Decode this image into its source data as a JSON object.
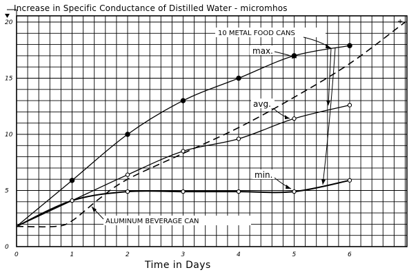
{
  "chart_data": {
    "type": "line",
    "title": "Increase in Specific Conductance of Distilled Water - micromhos",
    "xlabel": "Time in Days",
    "ylabel": "",
    "xlim": [
      0,
      7
    ],
    "ylim": [
      0,
      20.5
    ],
    "x_ticks": [
      "0",
      "1",
      "2",
      "3",
      "4",
      "5",
      "6"
    ],
    "y_ticks": [
      "0",
      "5",
      "10",
      "15",
      "20"
    ],
    "grid": true,
    "series": [
      {
        "name": "max.",
        "marker": "filled-circle",
        "style": "solid",
        "points": [
          [
            0,
            1.8
          ],
          [
            1,
            5.9
          ],
          [
            2,
            10.0
          ],
          [
            3,
            13.0
          ],
          [
            4,
            15.0
          ],
          [
            5,
            17.0
          ],
          [
            6,
            17.9
          ]
        ]
      },
      {
        "name": "avg.",
        "marker": "open-circle",
        "style": "solid",
        "points": [
          [
            0,
            1.8
          ],
          [
            1,
            4.1
          ],
          [
            2,
            6.4
          ],
          [
            3,
            8.5
          ],
          [
            4,
            9.6
          ],
          [
            5,
            11.4
          ],
          [
            6,
            12.6
          ]
        ]
      },
      {
        "name": "min.",
        "marker": "open-circle",
        "style": "solid",
        "points": [
          [
            0,
            1.8
          ],
          [
            1,
            4.1
          ],
          [
            2,
            4.9
          ],
          [
            3,
            4.9
          ],
          [
            4,
            4.9
          ],
          [
            5,
            4.9
          ],
          [
            6,
            5.9
          ]
        ]
      },
      {
        "name": "ALUMINUM BEVERAGE CAN",
        "marker": "none",
        "style": "dashed",
        "points": [
          [
            0,
            1.8
          ],
          [
            0.7,
            1.8
          ],
          [
            1,
            2.3
          ],
          [
            1.5,
            4.3
          ],
          [
            2,
            6.0
          ],
          [
            3,
            8.3
          ],
          [
            4,
            10.6
          ],
          [
            5,
            13.3
          ],
          [
            6,
            16.3
          ],
          [
            7,
            20.0
          ]
        ]
      }
    ],
    "annotations": {
      "group_label": "10 METAL FOOD CANS",
      "max": "max.",
      "avg": "avg.",
      "min": "min.",
      "aluminum": "ALUMINUM BEVERAGE CAN"
    }
  }
}
